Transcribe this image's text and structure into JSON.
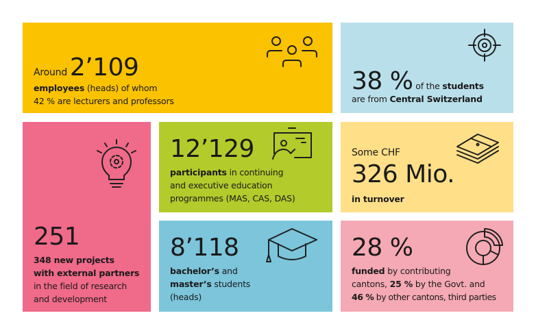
{
  "colors": {
    "employees": "#FBC200",
    "students_region": "#B9DFEA",
    "projects": "#F06A8A",
    "participants": "#B3CB2B",
    "turnover": "#FFDF88",
    "bachelor": "#7CC5DB",
    "funding": "#F5A9B4"
  },
  "employees": {
    "prefix": "Around",
    "value": "2’109",
    "bold": "employees",
    "line1_rest": " (heads) of whom",
    "line2": "42 %  are lecturers and professors",
    "icon": "people-group-icon"
  },
  "students_region": {
    "value": "38 %",
    "inline_pre": " of the ",
    "inline_bold": "students",
    "line2_pre": "are from ",
    "line2_bold": "Central Switzerland",
    "icon": "target-icon"
  },
  "projects": {
    "value": "251",
    "bold1": "348 new projects",
    "bold2": "with external partners",
    "line3": "in the field of research",
    "line4": "and development",
    "icon": "lightbulb-gear-icon"
  },
  "participants": {
    "value": "12’129",
    "bold": "participants",
    "line1_rest": " in continuing",
    "line2": "and executive education",
    "line3": "programmes (MAS, CAS, DAS)",
    "icon": "presentation-board-icon"
  },
  "turnover": {
    "prefix": "Some CHF",
    "value": "326 Mio.",
    "bold": "in turnover",
    "icon": "money-stack-icon"
  },
  "bachelor": {
    "value": "8’118",
    "bold1": "bachelor’s",
    "line1_rest": " and",
    "bold2": "master’s",
    "line2_rest": " students",
    "line3": "(heads)",
    "icon": "graduation-cap-icon"
  },
  "funding": {
    "value": "28 %",
    "bold1": "funded",
    "line1_rest": " by contributing",
    "line2_pre": "cantons, ",
    "bold2": "25 %",
    "line2_rest": " by the Govt. and",
    "bold3": "46 %",
    "line3_rest": " by other cantons, third parties",
    "icon": "donut-chart-icon"
  }
}
